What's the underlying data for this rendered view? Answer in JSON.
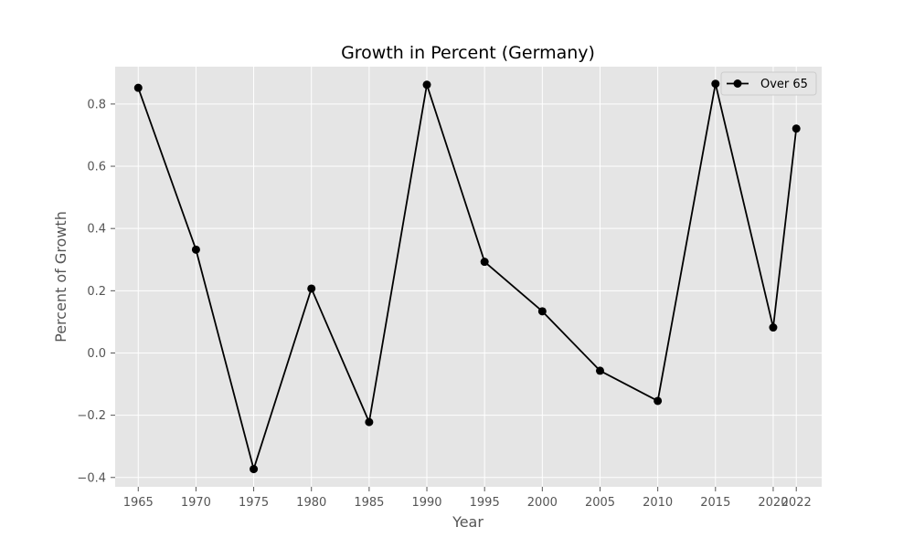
{
  "chart_data": {
    "type": "line",
    "title": "Growth in Percent (Germany)",
    "xlabel": "Year",
    "ylabel": "Percent of Growth",
    "categories": [
      "1965",
      "1970",
      "1975",
      "1980",
      "1985",
      "1990",
      "1995",
      "2000",
      "2005",
      "2010",
      "2015",
      "2020",
      "2022"
    ],
    "series": [
      {
        "name": "Over 65",
        "values": [
          0.852,
          0.332,
          -0.373,
          0.207,
          -0.222,
          0.862,
          0.293,
          0.134,
          -0.057,
          -0.154,
          0.865,
          0.082,
          0.721
        ]
      }
    ],
    "ylim": [
      -0.43,
      0.92
    ],
    "yticks": [
      -0.4,
      -0.2,
      0.0,
      0.2,
      0.4,
      0.6,
      0.8
    ],
    "ytick_labels": [
      "−0.4",
      "−0.2",
      "0.0",
      "0.2",
      "0.4",
      "0.6",
      "0.8"
    ],
    "grid": true,
    "legend_position": "top-right",
    "colors": {
      "plot_background": "#e5e5e5",
      "grid": "#ffffff",
      "line": "#000000",
      "marker": "#000000"
    }
  }
}
